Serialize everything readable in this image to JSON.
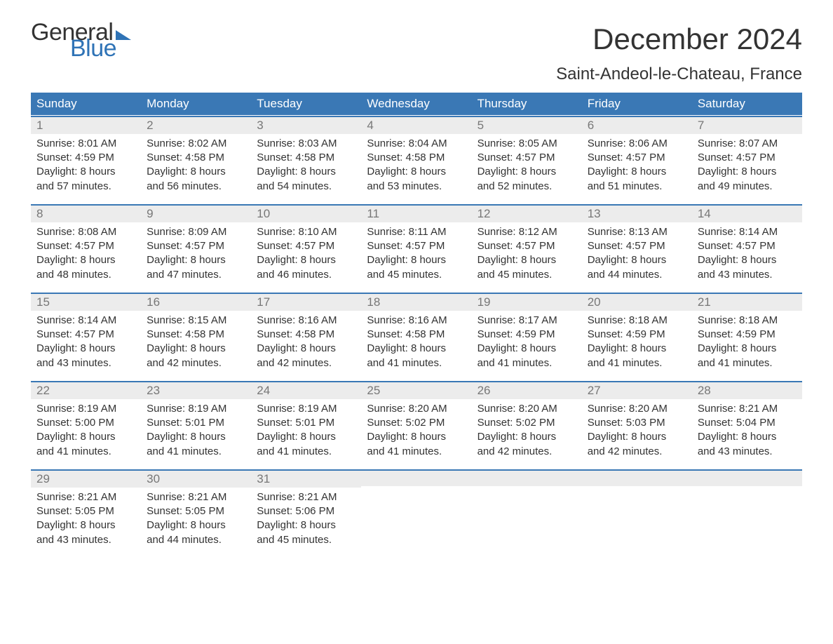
{
  "logo": {
    "word1": "General",
    "word2": "Blue"
  },
  "title": "December 2024",
  "subtitle": "Saint-Andeol-le-Chateau, France",
  "colors": {
    "header_bg": "#3a78b5",
    "header_text": "#ffffff",
    "day_num_bg": "#ececec",
    "day_num_text": "#777777",
    "body_text": "#333333",
    "accent_blue": "#2f73b6",
    "page_bg": "#ffffff"
  },
  "typography": {
    "title_fontsize": 42,
    "subtitle_fontsize": 24,
    "dow_fontsize": 17,
    "daynum_fontsize": 17,
    "body_fontsize": 15
  },
  "days_of_week": [
    "Sunday",
    "Monday",
    "Tuesday",
    "Wednesday",
    "Thursday",
    "Friday",
    "Saturday"
  ],
  "weeks": [
    [
      {
        "n": "1",
        "sunrise": "Sunrise: 8:01 AM",
        "sunset": "Sunset: 4:59 PM",
        "d1": "Daylight: 8 hours",
        "d2": "and 57 minutes."
      },
      {
        "n": "2",
        "sunrise": "Sunrise: 8:02 AM",
        "sunset": "Sunset: 4:58 PM",
        "d1": "Daylight: 8 hours",
        "d2": "and 56 minutes."
      },
      {
        "n": "3",
        "sunrise": "Sunrise: 8:03 AM",
        "sunset": "Sunset: 4:58 PM",
        "d1": "Daylight: 8 hours",
        "d2": "and 54 minutes."
      },
      {
        "n": "4",
        "sunrise": "Sunrise: 8:04 AM",
        "sunset": "Sunset: 4:58 PM",
        "d1": "Daylight: 8 hours",
        "d2": "and 53 minutes."
      },
      {
        "n": "5",
        "sunrise": "Sunrise: 8:05 AM",
        "sunset": "Sunset: 4:57 PM",
        "d1": "Daylight: 8 hours",
        "d2": "and 52 minutes."
      },
      {
        "n": "6",
        "sunrise": "Sunrise: 8:06 AM",
        "sunset": "Sunset: 4:57 PM",
        "d1": "Daylight: 8 hours",
        "d2": "and 51 minutes."
      },
      {
        "n": "7",
        "sunrise": "Sunrise: 8:07 AM",
        "sunset": "Sunset: 4:57 PM",
        "d1": "Daylight: 8 hours",
        "d2": "and 49 minutes."
      }
    ],
    [
      {
        "n": "8",
        "sunrise": "Sunrise: 8:08 AM",
        "sunset": "Sunset: 4:57 PM",
        "d1": "Daylight: 8 hours",
        "d2": "and 48 minutes."
      },
      {
        "n": "9",
        "sunrise": "Sunrise: 8:09 AM",
        "sunset": "Sunset: 4:57 PM",
        "d1": "Daylight: 8 hours",
        "d2": "and 47 minutes."
      },
      {
        "n": "10",
        "sunrise": "Sunrise: 8:10 AM",
        "sunset": "Sunset: 4:57 PM",
        "d1": "Daylight: 8 hours",
        "d2": "and 46 minutes."
      },
      {
        "n": "11",
        "sunrise": "Sunrise: 8:11 AM",
        "sunset": "Sunset: 4:57 PM",
        "d1": "Daylight: 8 hours",
        "d2": "and 45 minutes."
      },
      {
        "n": "12",
        "sunrise": "Sunrise: 8:12 AM",
        "sunset": "Sunset: 4:57 PM",
        "d1": "Daylight: 8 hours",
        "d2": "and 45 minutes."
      },
      {
        "n": "13",
        "sunrise": "Sunrise: 8:13 AM",
        "sunset": "Sunset: 4:57 PM",
        "d1": "Daylight: 8 hours",
        "d2": "and 44 minutes."
      },
      {
        "n": "14",
        "sunrise": "Sunrise: 8:14 AM",
        "sunset": "Sunset: 4:57 PM",
        "d1": "Daylight: 8 hours",
        "d2": "and 43 minutes."
      }
    ],
    [
      {
        "n": "15",
        "sunrise": "Sunrise: 8:14 AM",
        "sunset": "Sunset: 4:57 PM",
        "d1": "Daylight: 8 hours",
        "d2": "and 43 minutes."
      },
      {
        "n": "16",
        "sunrise": "Sunrise: 8:15 AM",
        "sunset": "Sunset: 4:58 PM",
        "d1": "Daylight: 8 hours",
        "d2": "and 42 minutes."
      },
      {
        "n": "17",
        "sunrise": "Sunrise: 8:16 AM",
        "sunset": "Sunset: 4:58 PM",
        "d1": "Daylight: 8 hours",
        "d2": "and 42 minutes."
      },
      {
        "n": "18",
        "sunrise": "Sunrise: 8:16 AM",
        "sunset": "Sunset: 4:58 PM",
        "d1": "Daylight: 8 hours",
        "d2": "and 41 minutes."
      },
      {
        "n": "19",
        "sunrise": "Sunrise: 8:17 AM",
        "sunset": "Sunset: 4:59 PM",
        "d1": "Daylight: 8 hours",
        "d2": "and 41 minutes."
      },
      {
        "n": "20",
        "sunrise": "Sunrise: 8:18 AM",
        "sunset": "Sunset: 4:59 PM",
        "d1": "Daylight: 8 hours",
        "d2": "and 41 minutes."
      },
      {
        "n": "21",
        "sunrise": "Sunrise: 8:18 AM",
        "sunset": "Sunset: 4:59 PM",
        "d1": "Daylight: 8 hours",
        "d2": "and 41 minutes."
      }
    ],
    [
      {
        "n": "22",
        "sunrise": "Sunrise: 8:19 AM",
        "sunset": "Sunset: 5:00 PM",
        "d1": "Daylight: 8 hours",
        "d2": "and 41 minutes."
      },
      {
        "n": "23",
        "sunrise": "Sunrise: 8:19 AM",
        "sunset": "Sunset: 5:01 PM",
        "d1": "Daylight: 8 hours",
        "d2": "and 41 minutes."
      },
      {
        "n": "24",
        "sunrise": "Sunrise: 8:19 AM",
        "sunset": "Sunset: 5:01 PM",
        "d1": "Daylight: 8 hours",
        "d2": "and 41 minutes."
      },
      {
        "n": "25",
        "sunrise": "Sunrise: 8:20 AM",
        "sunset": "Sunset: 5:02 PM",
        "d1": "Daylight: 8 hours",
        "d2": "and 41 minutes."
      },
      {
        "n": "26",
        "sunrise": "Sunrise: 8:20 AM",
        "sunset": "Sunset: 5:02 PM",
        "d1": "Daylight: 8 hours",
        "d2": "and 42 minutes."
      },
      {
        "n": "27",
        "sunrise": "Sunrise: 8:20 AM",
        "sunset": "Sunset: 5:03 PM",
        "d1": "Daylight: 8 hours",
        "d2": "and 42 minutes."
      },
      {
        "n": "28",
        "sunrise": "Sunrise: 8:21 AM",
        "sunset": "Sunset: 5:04 PM",
        "d1": "Daylight: 8 hours",
        "d2": "and 43 minutes."
      }
    ],
    [
      {
        "n": "29",
        "sunrise": "Sunrise: 8:21 AM",
        "sunset": "Sunset: 5:05 PM",
        "d1": "Daylight: 8 hours",
        "d2": "and 43 minutes."
      },
      {
        "n": "30",
        "sunrise": "Sunrise: 8:21 AM",
        "sunset": "Sunset: 5:05 PM",
        "d1": "Daylight: 8 hours",
        "d2": "and 44 minutes."
      },
      {
        "n": "31",
        "sunrise": "Sunrise: 8:21 AM",
        "sunset": "Sunset: 5:06 PM",
        "d1": "Daylight: 8 hours",
        "d2": "and 45 minutes."
      },
      null,
      null,
      null,
      null
    ]
  ]
}
